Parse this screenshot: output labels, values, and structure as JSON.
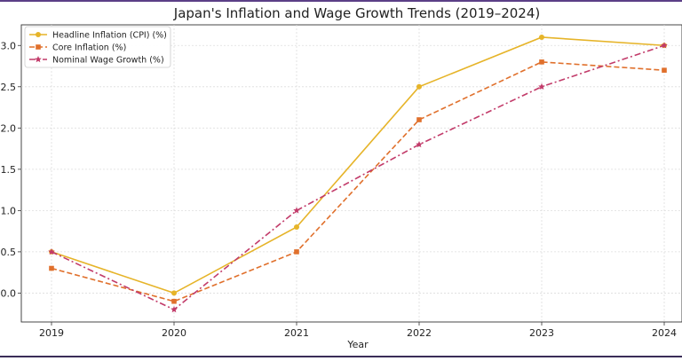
{
  "chart_data": {
    "type": "line",
    "title": "Japan's Inflation and Wage Growth Trends (2019–2024)",
    "xlabel": "Year",
    "ylabel": "",
    "categories": [
      "2019",
      "2020",
      "2021",
      "2022",
      "2023",
      "2024"
    ],
    "ylim": [
      -0.35,
      3.25
    ],
    "yticks": [
      "0.0",
      "0.5",
      "1.0",
      "1.5",
      "2.0",
      "2.5",
      "3.0"
    ],
    "ytick_values": [
      0.0,
      0.5,
      1.0,
      1.5,
      2.0,
      2.5,
      3.0
    ],
    "grid": true,
    "legend_position": "top-left",
    "series": [
      {
        "name": "Headline Inflation (CPI) (%)",
        "values": [
          0.5,
          0.0,
          0.8,
          2.5,
          3.1,
          3.0
        ],
        "color": "#e6b429",
        "dash": "solid",
        "marker": "circle"
      },
      {
        "name": "Core Inflation (%)",
        "values": [
          0.3,
          -0.1,
          0.5,
          2.1,
          2.8,
          2.7
        ],
        "color": "#e0702c",
        "dash": "dashed",
        "marker": "square"
      },
      {
        "name": "Nominal Wage Growth (%)",
        "values": [
          0.5,
          -0.2,
          1.0,
          1.8,
          2.5,
          3.0
        ],
        "color": "#c23b6a",
        "dash": "dashdot",
        "marker": "star"
      }
    ]
  }
}
